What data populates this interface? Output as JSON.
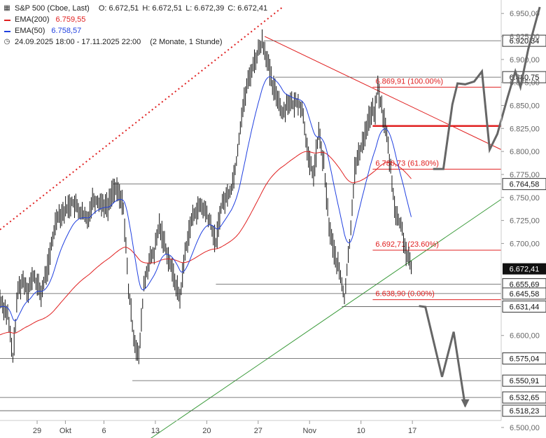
{
  "legend": {
    "instrument": "S&P 500 (Cboe, Last)",
    "ohlc": {
      "o": "O: 6.672,51",
      "h": "H: 6.672,51",
      "l": "L: 6.672,39",
      "c": "C: 6.672,41"
    },
    "ema200": {
      "label": "EMA(200)",
      "value": "6.759,55",
      "color": "#e02020"
    },
    "ema50": {
      "label": "EMA(50)",
      "value": "6.758,57",
      "color": "#2040e0"
    },
    "range": {
      "dates": "24.09.2025 18:00 - 17.11.2025 22:00",
      "span": "(2 Monate, 1 Stunde)"
    }
  },
  "chart_data": {
    "type": "line",
    "ylim": [
      6500,
      6957
    ],
    "x_ticks": [
      {
        "label": "29",
        "i": 18
      },
      {
        "label": "Okt",
        "i": 40
      },
      {
        "label": "6",
        "i": 70
      },
      {
        "label": "13",
        "i": 110
      },
      {
        "label": "20",
        "i": 150
      },
      {
        "label": "27",
        "i": 190
      },
      {
        "label": "Nov",
        "i": 230
      },
      {
        "label": "10",
        "i": 270
      },
      {
        "label": "17",
        "i": 310
      }
    ],
    "y_ticks": [
      {
        "value": 6950,
        "label": "6.950,00"
      },
      {
        "value": 6925,
        "label": "6.925,00"
      },
      {
        "value": 6900,
        "label": "6.900,00"
      },
      {
        "value": 6875,
        "label": "6.875,00"
      },
      {
        "value": 6850,
        "label": "6.850,00"
      },
      {
        "value": 6825,
        "label": "6.825,00"
      },
      {
        "value": 6800,
        "label": "6.800,00"
      },
      {
        "value": 6775,
        "label": "6.775,00"
      },
      {
        "value": 6750,
        "label": "6.750,00"
      },
      {
        "value": 6725,
        "label": "6.725,00"
      },
      {
        "value": 6700,
        "label": "6.700,00"
      },
      {
        "value": 6600,
        "label": "6.600,00"
      },
      {
        "value": 6500,
        "label": "6.500,00"
      }
    ],
    "levels": [
      {
        "value": 6920.34,
        "label": "6.920,34",
        "from_i": 205
      },
      {
        "value": 6880.75,
        "label": "6.880,75",
        "from_i": 214
      },
      {
        "value": 6764.58,
        "label": "6.764,58",
        "from_i": 88
      },
      {
        "value": 6655.69,
        "label": "6.655,69",
        "from_i": 168
      },
      {
        "value": 6645.58,
        "label": "6.645,58",
        "from_i": 0
      },
      {
        "value": 6631.44,
        "label": "6.631,44",
        "from_i": 266
      },
      {
        "value": 6575.04,
        "label": "6.575,04",
        "from_i": 0
      },
      {
        "value": 6550.91,
        "label": "6.550,91",
        "from_i": 103
      },
      {
        "value": 6532.65,
        "label": "6.532,65",
        "from_i": 0
      },
      {
        "value": 6518.23,
        "label": "6.518,23",
        "from_i": 0
      }
    ],
    "current_price": {
      "value": 6672.41,
      "label": "6.672,41"
    },
    "fib_levels": [
      {
        "value": 6869.91,
        "label": "6.869,91 (100.00%)"
      },
      {
        "value": 6827.7,
        "label": ""
      },
      {
        "value": 6780.73,
        "label": "6.780,73 (61.80%)"
      },
      {
        "value": 6692.71,
        "label": "6.692,71 (23.60%)"
      },
      {
        "value": 6638.9,
        "label": "6.638,90 (0.00%)"
      }
    ],
    "fib_start_i": 290,
    "trendlines": [
      {
        "name": "resistance",
        "color": "#e02020",
        "points": [
          [
            206,
            6925
          ],
          [
            390,
            6802
          ]
        ]
      },
      {
        "name": "support",
        "color": "#3a9a3a",
        "points": [
          [
            116,
            6487
          ],
          [
            390,
            6748
          ]
        ]
      },
      {
        "name": "long-term",
        "color": "#e02020",
        "dashed": true,
        "points": [
          [
            0,
            6715
          ],
          [
            220,
            6957
          ]
        ]
      }
    ],
    "projection": {
      "color": "#666666",
      "points": [
        [
          326,
          6632
        ],
        [
          331,
          6631
        ],
        [
          344,
          6555
        ],
        [
          353,
          6604
        ],
        [
          362,
          6523
        ]
      ],
      "points_up": [
        [
          337,
          6781
        ],
        [
          345,
          6781
        ],
        [
          352,
          6851
        ],
        [
          356,
          6874
        ],
        [
          362,
          6873
        ],
        [
          369,
          6876
        ],
        [
          375,
          6887
        ],
        [
          381,
          6802
        ],
        [
          387,
          6819
        ],
        [
          395,
          6859
        ],
        [
          401,
          6887
        ],
        [
          405,
          6870
        ],
        [
          411,
          6911
        ],
        [
          420,
          6957
        ]
      ]
    },
    "ohlc_anchor": {
      "points": [
        [
          0,
          6640
        ],
        [
          6,
          6622
        ],
        [
          10,
          6575
        ],
        [
          14,
          6650
        ],
        [
          18,
          6660
        ],
        [
          22,
          6650
        ],
        [
          26,
          6665
        ],
        [
          32,
          6645
        ],
        [
          38,
          6680
        ],
        [
          44,
          6730
        ],
        [
          50,
          6735
        ],
        [
          56,
          6745
        ],
        [
          62,
          6735
        ],
        [
          68,
          6725
        ],
        [
          72,
          6748
        ],
        [
          78,
          6745
        ],
        [
          84,
          6740
        ],
        [
          88,
          6760
        ],
        [
          92,
          6755
        ],
        [
          96,
          6740
        ],
        [
          100,
          6650
        ],
        [
          104,
          6600
        ],
        [
          108,
          6575
        ],
        [
          112,
          6655
        ],
        [
          116,
          6680
        ],
        [
          120,
          6690
        ],
        [
          124,
          6720
        ],
        [
          128,
          6700
        ],
        [
          132,
          6680
        ],
        [
          136,
          6660
        ],
        [
          140,
          6640
        ],
        [
          144,
          6690
        ],
        [
          148,
          6720
        ],
        [
          152,
          6735
        ],
        [
          156,
          6740
        ],
        [
          160,
          6735
        ],
        [
          164,
          6720
        ],
        [
          168,
          6700
        ],
        [
          172,
          6740
        ],
        [
          176,
          6750
        ],
        [
          180,
          6760
        ],
        [
          184,
          6790
        ],
        [
          188,
          6840
        ],
        [
          192,
          6870
        ],
        [
          196,
          6890
        ],
        [
          200,
          6905
        ],
        [
          204,
          6920
        ],
        [
          208,
          6900
        ],
        [
          212,
          6870
        ],
        [
          216,
          6860
        ],
        [
          220,
          6840
        ],
        [
          224,
          6855
        ],
        [
          228,
          6850
        ],
        [
          232,
          6855
        ],
        [
          236,
          6840
        ],
        [
          240,
          6790
        ],
        [
          244,
          6775
        ],
        [
          248,
          6820
        ],
        [
          252,
          6785
        ],
        [
          256,
          6720
        ],
        [
          260,
          6690
        ],
        [
          264,
          6670
        ],
        [
          268,
          6640
        ],
        [
          272,
          6700
        ],
        [
          276,
          6780
        ],
        [
          280,
          6800
        ],
        [
          284,
          6820
        ],
        [
          288,
          6840
        ],
        [
          292,
          6845
        ],
        [
          294,
          6869
        ],
        [
          298,
          6840
        ],
        [
          300,
          6827
        ],
        [
          304,
          6780
        ],
        [
          308,
          6730
        ],
        [
          312,
          6720
        ],
        [
          316,
          6690
        ],
        [
          320,
          6672
        ]
      ]
    }
  }
}
